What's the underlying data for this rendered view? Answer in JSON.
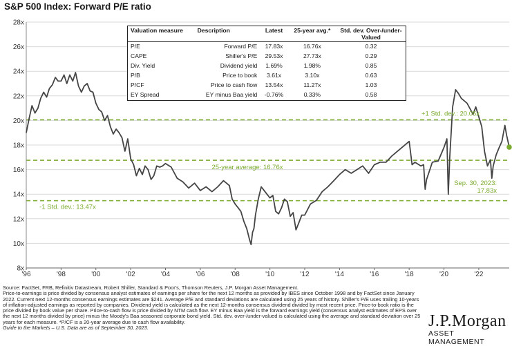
{
  "title": "S&P 500 Index: Forward P/E ratio",
  "colors": {
    "line": "#444444",
    "accent": "#7aab2e",
    "grid": "#d9d9d9"
  },
  "chart_data": {
    "type": "line",
    "title": "S&P 500 Index: Forward P/E ratio",
    "xlabel": "",
    "ylabel": "",
    "xlim": [
      1996,
      2023.75
    ],
    "ylim": [
      8,
      28
    ],
    "x_ticks": [
      1996,
      1998,
      2000,
      2002,
      2004,
      2006,
      2008,
      2010,
      2012,
      2014,
      2016,
      2018,
      2020,
      2022
    ],
    "x_tick_labels": [
      "'96",
      "'98",
      "'00",
      "'02",
      "'04",
      "'06",
      "'08",
      "'10",
      "'12",
      "'14",
      "'16",
      "'18",
      "'20",
      "'22"
    ],
    "y_ticks": [
      8,
      10,
      12,
      14,
      16,
      18,
      20,
      22,
      24,
      26,
      28
    ],
    "y_tick_labels": [
      "8x",
      "10x",
      "12x",
      "14x",
      "16x",
      "18x",
      "20x",
      "22x",
      "24x",
      "26x",
      "28x"
    ],
    "grid": "horizontal",
    "series": [
      {
        "x": [
          1996.0,
          1996.17,
          1996.33,
          1996.5,
          1996.67,
          1996.83,
          1997.0,
          1997.17,
          1997.33,
          1997.5,
          1997.67,
          1997.83,
          1998.0,
          1998.17,
          1998.33,
          1998.5,
          1998.67,
          1998.83,
          1999.0,
          1999.17,
          1999.33,
          1999.5,
          1999.67,
          1999.83,
          2000.0,
          2000.17,
          2000.33,
          2000.5,
          2000.67,
          2000.83,
          2001.0,
          2001.17,
          2001.33,
          2001.5,
          2001.67,
          2001.83,
          2002.0,
          2002.17,
          2002.33,
          2002.5,
          2002.67,
          2002.83,
          2003.0,
          2003.17,
          2003.33,
          2003.5,
          2003.67,
          2003.83,
          2004.0,
          2004.33,
          2004.67,
          2005.0,
          2005.33,
          2005.67,
          2006.0,
          2006.33,
          2006.67,
          2007.0,
          2007.33,
          2007.67,
          2007.83,
          2008.0,
          2008.17,
          2008.33,
          2008.5,
          2008.67,
          2008.83,
          2008.92,
          2009.0,
          2009.08,
          2009.17,
          2009.33,
          2009.5,
          2009.67,
          2009.83,
          2010.0,
          2010.17,
          2010.33,
          2010.5,
          2010.67,
          2010.83,
          2011.0,
          2011.17,
          2011.33,
          2011.5,
          2011.67,
          2011.83,
          2012.0,
          2012.33,
          2012.67,
          2013.0,
          2013.33,
          2013.67,
          2014.0,
          2014.33,
          2014.67,
          2015.0,
          2015.33,
          2015.67,
          2016.0,
          2016.33,
          2016.67,
          2017.0,
          2017.33,
          2017.67,
          2018.0,
          2018.17,
          2018.33,
          2018.67,
          2018.83,
          2018.92,
          2019.0,
          2019.33,
          2019.67,
          2020.0,
          2020.17,
          2020.25,
          2020.33,
          2020.5,
          2020.67,
          2020.83,
          2021.0,
          2021.33,
          2021.67,
          2021.83,
          2022.0,
          2022.17,
          2022.33,
          2022.5,
          2022.67,
          2022.75,
          2022.83,
          2023.0,
          2023.17,
          2023.33,
          2023.5,
          2023.6,
          2023.75
        ],
        "y": [
          19.0,
          20.2,
          21.2,
          20.6,
          21.0,
          21.8,
          22.3,
          21.9,
          22.6,
          22.9,
          23.5,
          23.2,
          23.2,
          23.7,
          23.0,
          23.7,
          23.2,
          23.9,
          22.8,
          22.3,
          22.8,
          23.0,
          22.4,
          22.3,
          21.4,
          20.9,
          20.7,
          20.0,
          20.4,
          19.5,
          18.9,
          19.3,
          19.0,
          18.6,
          17.5,
          18.5,
          16.9,
          16.4,
          15.5,
          16.1,
          15.6,
          16.3,
          16.0,
          15.2,
          15.5,
          16.3,
          16.2,
          16.3,
          16.5,
          16.2,
          15.3,
          15.0,
          14.5,
          14.9,
          14.3,
          14.6,
          14.2,
          14.6,
          15.1,
          14.7,
          13.6,
          13.2,
          12.9,
          12.6,
          11.8,
          11.2,
          10.3,
          9.9,
          10.9,
          11.2,
          12.3,
          13.6,
          14.6,
          14.3,
          14.0,
          13.7,
          13.9,
          12.6,
          12.4,
          12.9,
          13.6,
          13.4,
          12.2,
          12.5,
          11.1,
          11.7,
          12.3,
          12.3,
          13.2,
          13.5,
          14.2,
          14.6,
          15.1,
          15.6,
          16.0,
          15.7,
          16.0,
          16.3,
          15.7,
          16.4,
          16.6,
          16.6,
          17.1,
          17.5,
          17.9,
          18.3,
          16.4,
          16.6,
          16.3,
          16.4,
          14.4,
          15.2,
          16.6,
          16.7,
          17.8,
          18.5,
          14.0,
          17.0,
          21.1,
          22.5,
          22.2,
          21.8,
          21.4,
          20.5,
          21.1,
          20.3,
          19.5,
          17.5,
          16.3,
          16.8,
          15.3,
          16.3,
          17.2,
          17.8,
          18.3,
          19.6,
          18.8,
          17.83
        ]
      }
    ],
    "end_point": {
      "x": 2023.75,
      "y": 17.83
    },
    "reference_lines": [
      {
        "y": 20.05,
        "label": "+1 Std. dev.: 20.05x"
      },
      {
        "y": 16.76,
        "label": "25-year average: 16.76x"
      },
      {
        "y": 13.47,
        "label": "-1 Std. dev.: 13.47x"
      }
    ],
    "annotations": [
      "Sep. 30, 2023:",
      "17.83x"
    ]
  },
  "table": {
    "headers": [
      "Valuation measure",
      "Description",
      "Latest",
      "25-year avg.*",
      "Std. dev. Over-/under-Valued"
    ],
    "rows": [
      [
        "P/E",
        "Forward P/E",
        "17.83x",
        "16.76x",
        "0.32"
      ],
      [
        "CAPE",
        "Shiller's P/E",
        "29.53x",
        "27.73x",
        "0.29"
      ],
      [
        "Div. Yield",
        "Dividend yield",
        "1.69%",
        "1.98%",
        "0.85"
      ],
      [
        "P/B",
        "Price to book",
        "3.61x",
        "3.10x",
        "0.63"
      ],
      [
        "P/CF",
        "Price to cash flow",
        "13.54x",
        "11.27x",
        "1.03"
      ],
      [
        "EY Spread",
        "EY minus Baa yield",
        "-0.76%",
        "0.33%",
        "0.58"
      ]
    ]
  },
  "footnote": {
    "source": "Source: FactSet, FRB, Refinitiv Datastream, Robert Shiller, Standard & Poor's, Thomson Reuters, J.P. Morgan Asset Management.",
    "body": "Price-to-earnings is price divided by consensus analyst estimates of earnings per share for the next 12 months as provided by IBES since October 1998 and by FactSet since January 2022. Current next 12-months consensus earnings estimates are $241. Average P/E and standard deviations are calculated using 25 years of history. Shiller's P/E uses trailing 10-years of inflation-adjusted earnings as reported by companies. Dividend yield is calculated as the next 12-months consensus dividend divided by most recent price. Price-to-book ratio is the price divided by book value per share. Price-to-cash flow is price divided by NTM cash flow. EY minus Baa yield is the forward earnings yield (consensus analyst estimates of EPS over the next 12 months divided by price) minus the Moody's Baa seasoned corporate bond yield. Std. dev. over-/under-valued is calculated using the average and standard deviation over 25 years for each measure. *P/CF is a 20-year average due to cash flow availability.",
    "guide": "Guide to the Markets – U.S. Data are as of September 30, 2023."
  },
  "brand": {
    "name": "J.P.Morgan",
    "sub": "ASSET MANAGEMENT"
  }
}
